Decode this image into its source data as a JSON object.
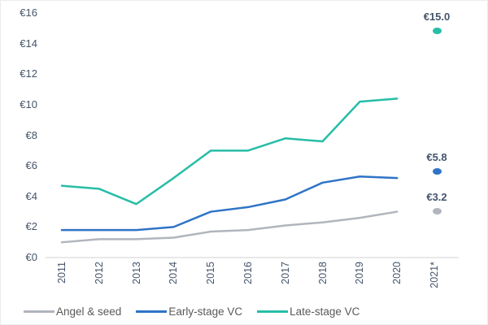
{
  "chart_data": {
    "type": "line",
    "title": "",
    "xlabel": "",
    "ylabel": "",
    "currency": "EUR",
    "ylim": [
      0,
      16
    ],
    "ytick_step": 2,
    "ytick_labels_top_down": [
      "€16",
      "€14",
      "€12",
      "€10",
      "€8",
      "€6",
      "€4",
      "€2",
      "€0"
    ],
    "categories": [
      "2011",
      "2012",
      "2013",
      "2014",
      "2015",
      "2016",
      "2017",
      "2018",
      "2019",
      "2020",
      "2021*"
    ],
    "grid": false,
    "legend_position": "bottom",
    "series": [
      {
        "name": "Angel & seed",
        "color": "#B1B5BD",
        "line_values": [
          1.0,
          1.2,
          1.2,
          1.3,
          1.7,
          1.8,
          2.1,
          2.3,
          2.6,
          3.0
        ],
        "final_point": {
          "category": "2021*",
          "value": 3.2,
          "label": "€3.2"
        }
      },
      {
        "name": "Early-stage VC",
        "color": "#2E74C6",
        "line_values": [
          1.8,
          1.8,
          1.8,
          2.0,
          3.0,
          3.3,
          3.8,
          4.9,
          5.3,
          5.2
        ],
        "final_point": {
          "category": "2021*",
          "value": 5.8,
          "label": "€5.8"
        }
      },
      {
        "name": "Late-stage VC",
        "color": "#27BDA7",
        "line_values": [
          4.7,
          4.5,
          3.5,
          5.2,
          7.0,
          7.0,
          7.8,
          7.6,
          10.2,
          10.4
        ],
        "final_point": {
          "category": "2021*",
          "value": 15.0,
          "label": "€15.0"
        }
      }
    ]
  },
  "colors": {
    "axis_text": "#44546A",
    "legend_text": "#595959",
    "axis_line": "#D9D9D9",
    "background": "#FFFFFF"
  }
}
